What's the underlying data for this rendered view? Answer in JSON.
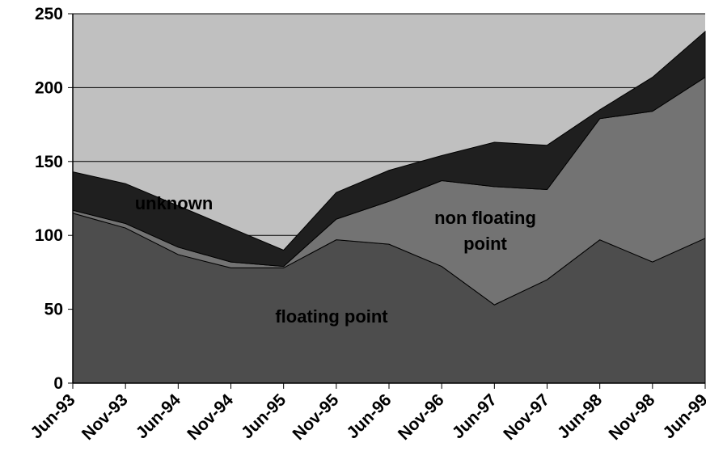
{
  "chart_data": {
    "type": "stacked_area",
    "categories": [
      "Jun-93",
      "Nov-93",
      "Jun-94",
      "Nov-94",
      "Jun-95",
      "Nov-95",
      "Jun-96",
      "Nov-96",
      "Jun-97",
      "Nov-97",
      "Jun-98",
      "Nov-98",
      "Jun-99"
    ],
    "series": [
      {
        "name": "floating point",
        "color": "#4d4d4d",
        "values": [
          115,
          105,
          87,
          78,
          78,
          97,
          94,
          79,
          53,
          70,
          97,
          82,
          98
        ]
      },
      {
        "name": "non floating point",
        "color": "#737373",
        "values": [
          2,
          3,
          5,
          4,
          1,
          14,
          29,
          58,
          80,
          61,
          82,
          102,
          109
        ]
      },
      {
        "name": "unknown",
        "color": "#1f1f1f",
        "values": [
          26,
          27,
          28,
          23,
          11,
          18,
          21,
          17,
          30,
          30,
          6,
          23,
          31
        ]
      }
    ],
    "ylim": [
      0,
      250
    ],
    "yticks": [
      0,
      50,
      100,
      150,
      200,
      250
    ],
    "grid": true,
    "background": "#c0c0c0"
  }
}
